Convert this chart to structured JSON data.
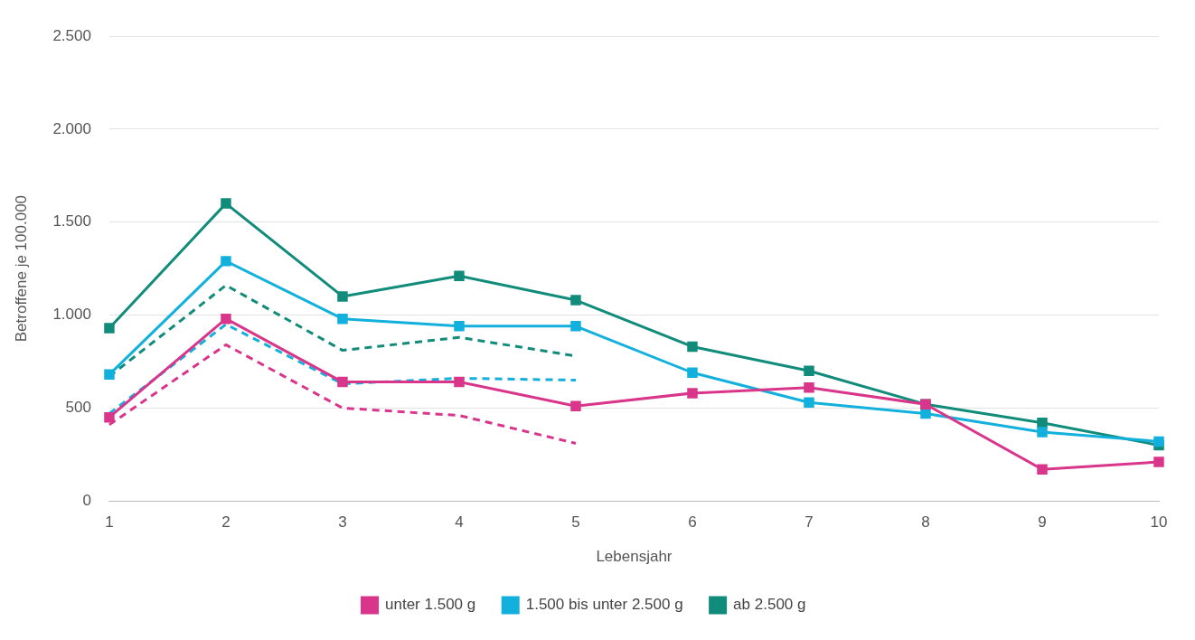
{
  "chart_data": {
    "type": "line",
    "xlabel": "Lebensjahr",
    "ylabel": "Betroffene je 100.000",
    "categories": [
      "1",
      "2",
      "3",
      "4",
      "5",
      "6",
      "7",
      "8",
      "9",
      "10"
    ],
    "ylim": [
      0,
      2500
    ],
    "yticks": [
      {
        "value": 0,
        "label": "0"
      },
      {
        "value": 500,
        "label": "500"
      },
      {
        "value": 1000,
        "label": "1.000"
      },
      {
        "value": 1500,
        "label": "1.500"
      },
      {
        "value": 2000,
        "label": "2.000"
      },
      {
        "value": 2500,
        "label": "2.500"
      }
    ],
    "grid": "y",
    "legend": "bottom",
    "marker": "square",
    "line_style": "solid",
    "series": [
      {
        "name": "unter 1.500 g",
        "color": "#d9368b",
        "values": [
          450,
          980,
          640,
          640,
          510,
          580,
          610,
          520,
          170,
          210
        ]
      },
      {
        "name": "1.500 bis unter 2.500 g",
        "color": "#12b0dc",
        "values": [
          680,
          1290,
          980,
          940,
          940,
          690,
          530,
          470,
          370,
          320
        ]
      },
      {
        "name": "ab 2.500 g",
        "color": "#118b7a",
        "values": [
          930,
          1600,
          1100,
          1210,
          1080,
          830,
          700,
          520,
          420,
          300
        ]
      },
      {
        "color": "#d9368b",
        "line_style": "dashed",
        "marker": "none",
        "values": [
          410,
          840,
          500,
          460,
          310,
          null,
          null,
          null,
          null,
          null
        ]
      },
      {
        "color": "#12b0dc",
        "line_style": "dashed",
        "marker": "none",
        "values": [
          470,
          950,
          630,
          660,
          650,
          null,
          null,
          null,
          null,
          null
        ]
      },
      {
        "color": "#118b7a",
        "line_style": "dashed",
        "marker": "none",
        "values": [
          670,
          1160,
          810,
          880,
          780,
          null,
          null,
          null,
          null,
          null
        ]
      }
    ]
  }
}
